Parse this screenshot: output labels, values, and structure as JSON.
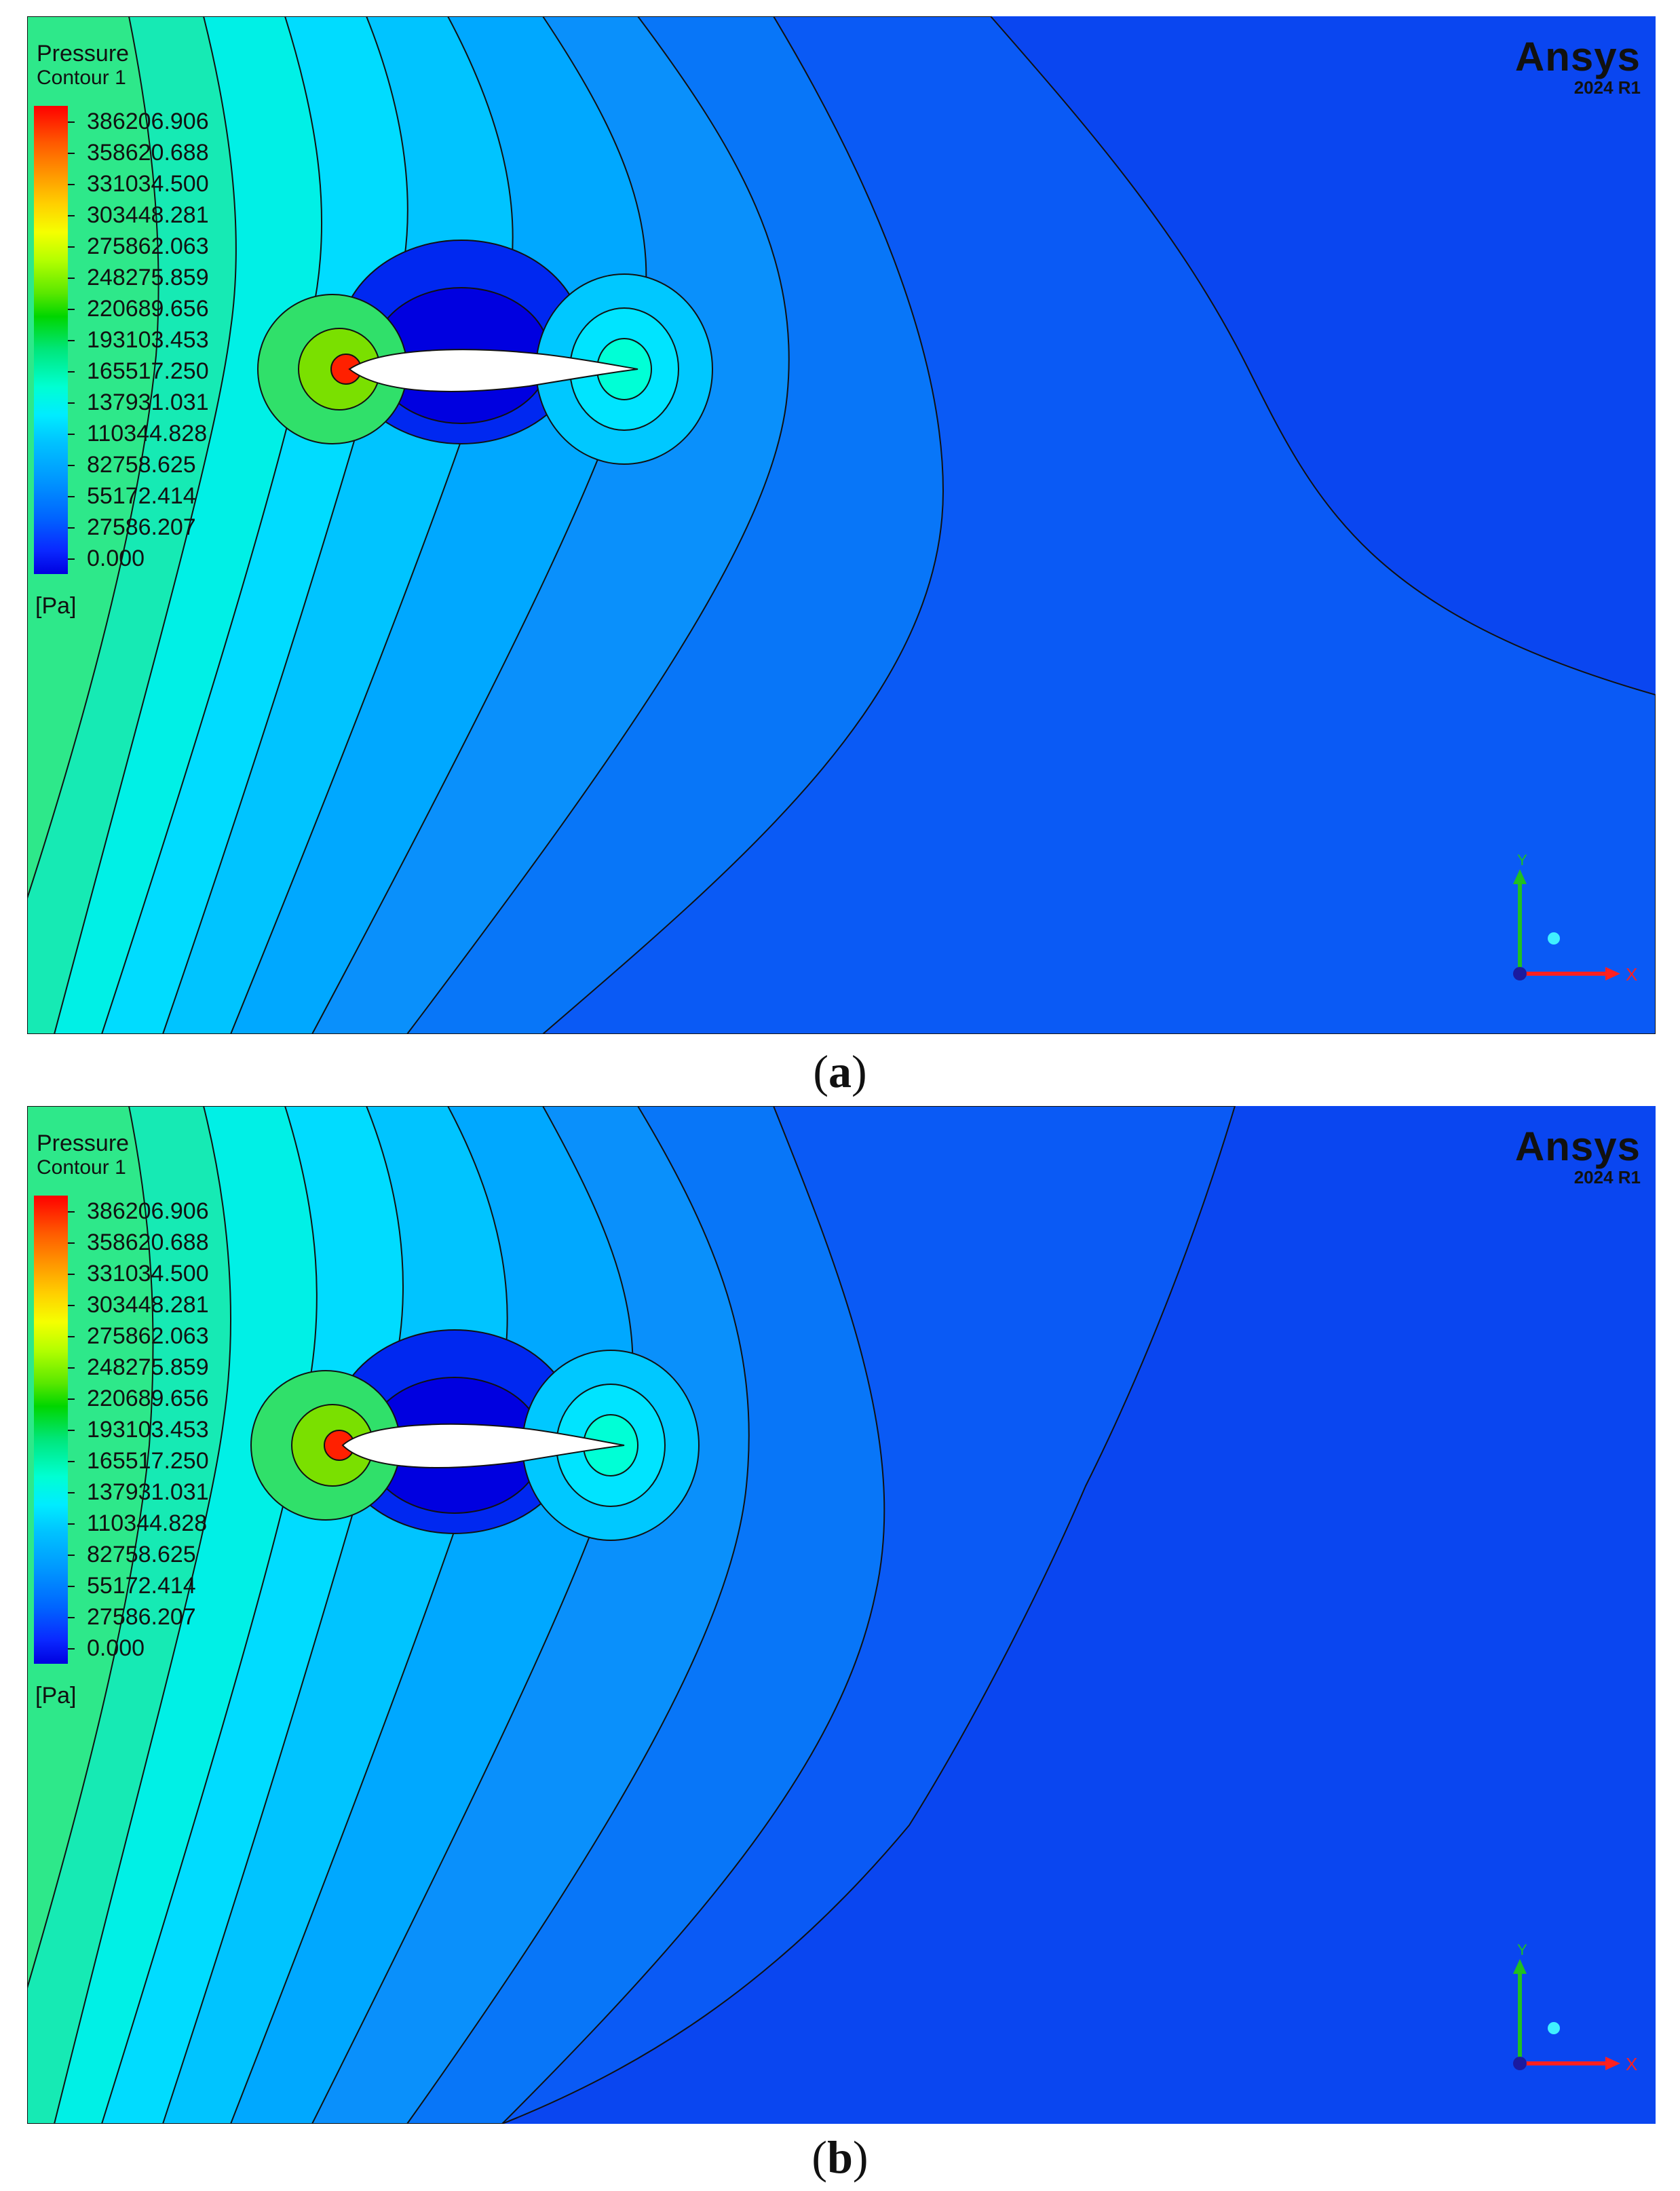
{
  "figure": {
    "panels": [
      {
        "legend": {
          "title": "Pressure",
          "subtitle": "Contour 1",
          "ticks": [
            "386206.906",
            "358620.688",
            "331034.500",
            "303448.281",
            "275862.063",
            "248275.859",
            "220689.656",
            "193103.453",
            "165517.250",
            "137931.031",
            "110344.828",
            "82758.625",
            "55172.414",
            "27586.207",
            "0.000"
          ],
          "unit": "[Pa]"
        },
        "logo": {
          "brand": "Ansys",
          "version": "2024 R1"
        },
        "axes": {
          "y_label": "Y",
          "x_label": "X"
        },
        "caption": "a"
      },
      {
        "legend": {
          "title": "Pressure",
          "subtitle": "Contour 1",
          "ticks": [
            "386206.906",
            "358620.688",
            "331034.500",
            "303448.281",
            "275862.063",
            "248275.859",
            "220689.656",
            "193103.453",
            "165517.250",
            "137931.031",
            "110344.828",
            "82758.625",
            "55172.414",
            "27586.207",
            "0.000"
          ],
          "unit": "[Pa]"
        },
        "logo": {
          "brand": "Ansys",
          "version": "2024 R1"
        },
        "axes": {
          "y_label": "Y",
          "x_label": "X"
        },
        "caption": "b"
      }
    ],
    "colors": {
      "far_field": "#0a46f0",
      "high": "#ff0000",
      "low": "#0000e0",
      "x_axis": "#ff2020",
      "y_axis": "#20c020"
    }
  }
}
